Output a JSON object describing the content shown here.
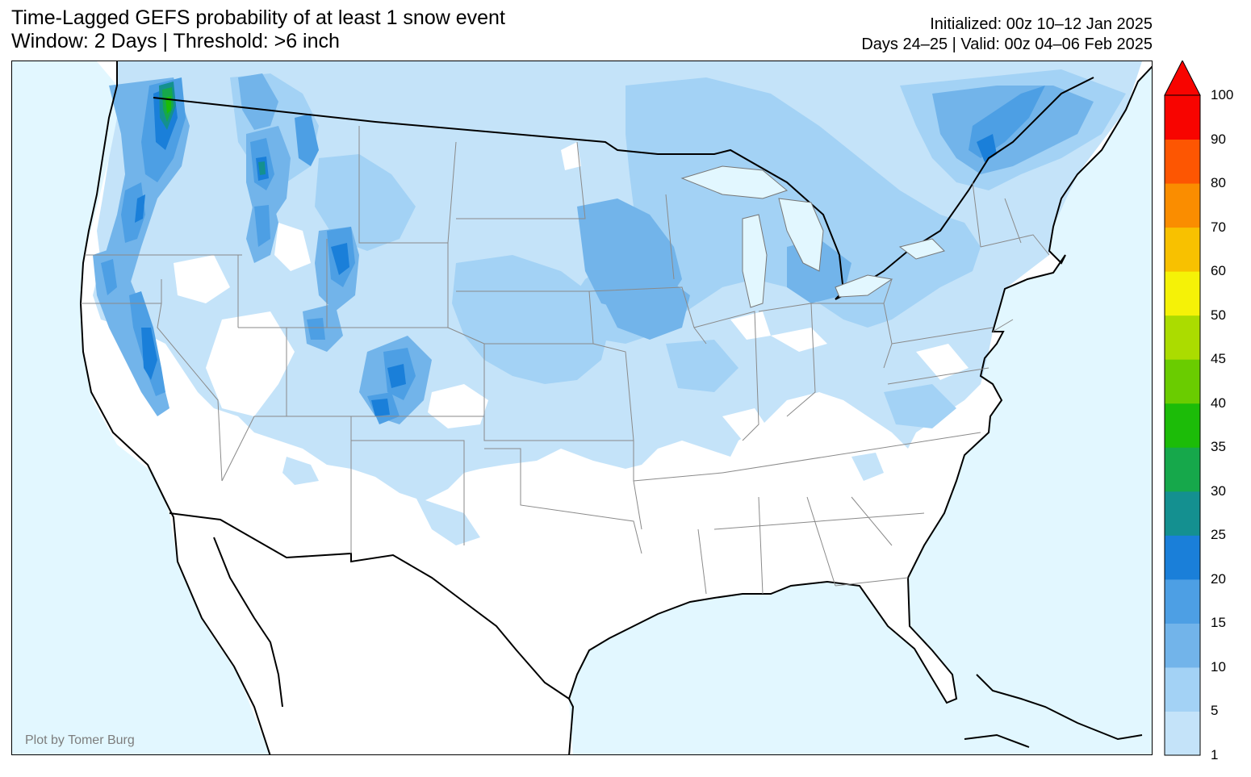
{
  "title": {
    "line1": "Time-Lagged GEFS probability of at least 1 snow event",
    "line2": "Window: 2 Days | Threshold: >6 inch"
  },
  "info": {
    "initialized": "Initialized: 00z 10–12 Jan 2025",
    "valid": "Days 24–25 | Valid: 00z 04–06 Feb 2025"
  },
  "credit": "Plot by Tomer Burg",
  "colors": {
    "ocean": "#e2f7ff",
    "land": "#ffffff",
    "coast": "#000000",
    "state_lines": "#8a8a8a"
  },
  "colorbar": {
    "levels": [
      "1",
      "5",
      "10",
      "15",
      "20",
      "25",
      "30",
      "35",
      "40",
      "45",
      "50",
      "60",
      "70",
      "80",
      "90",
      "100"
    ],
    "colors": [
      "#c4e3f9",
      "#a3d2f5",
      "#72b4ea",
      "#4d9fe4",
      "#1a7fd9",
      "#149090",
      "#16a84b",
      "#1cbc08",
      "#6acc00",
      "#abdc00",
      "#f5f207",
      "#f8c100",
      "#fa8d00",
      "#fd5602",
      "#f80400"
    ],
    "extend": "max"
  }
}
